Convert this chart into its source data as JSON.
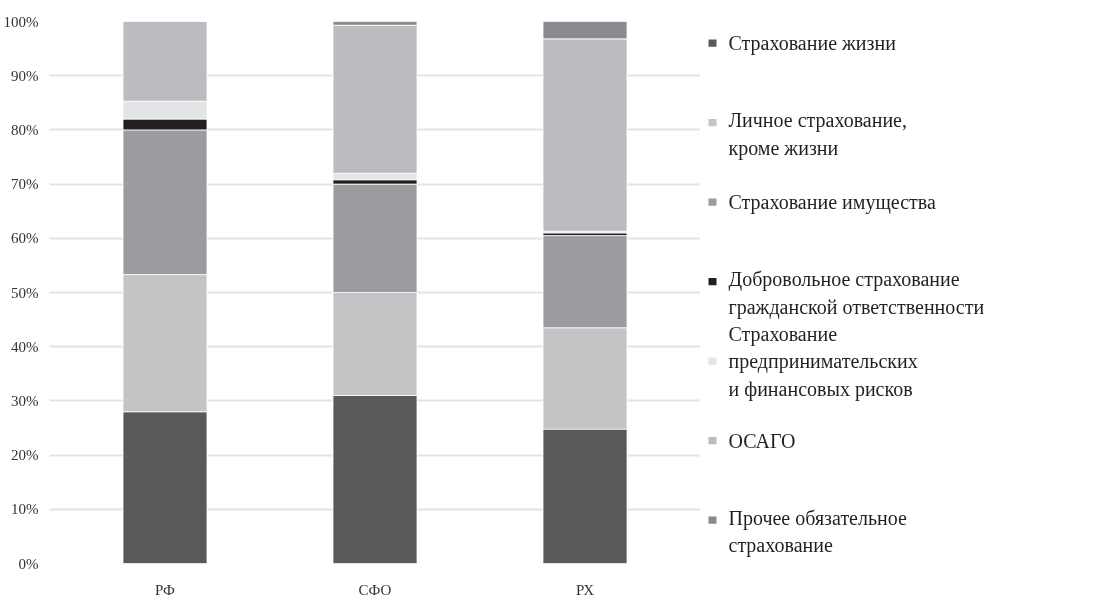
{
  "chart_data": {
    "type": "bar",
    "stacked": true,
    "categories": [
      "РФ",
      "СФО",
      "РХ"
    ],
    "series": [
      {
        "name": "Страхование жизни",
        "color": "#58595b",
        "values": [
          28,
          31,
          24.8
        ]
      },
      {
        "name": "Личное страхование,\nкроме жизни",
        "color": "#c3c4c6",
        "values": [
          25.3,
          19,
          18.7
        ]
      },
      {
        "name": "Страхование имущества",
        "color": "#9b9c9f",
        "values": [
          26.7,
          20,
          17
        ]
      },
      {
        "name": "Добровольное страхование\nгражданской ответственности",
        "color": "#231f20",
        "values": [
          2,
          0.8,
          0.5
        ]
      },
      {
        "name": "Страхование\nпредпринимательских\nи финансовых рисков",
        "color": "#e3e4e5",
        "values": [
          3.3,
          1.2,
          0.3
        ]
      },
      {
        "name": "ОСАГО",
        "color": "#bbbcbf",
        "values": [
          14.7,
          27.3,
          35.5
        ]
      },
      {
        "name": "Прочее обязательное\nстрахование",
        "color": "#8a8b8e",
        "values": [
          null,
          0.7,
          3.2
        ]
      }
    ],
    "ylim": [
      0,
      100
    ],
    "yticks": [
      {
        "value": 0,
        "label": "0%"
      },
      {
        "value": 10,
        "label": "10%"
      },
      {
        "value": 20,
        "label": "20%"
      },
      {
        "value": 30,
        "label": "30%"
      },
      {
        "value": 40,
        "label": "40%"
      },
      {
        "value": 50,
        "label": "50%"
      },
      {
        "value": 60,
        "label": "60%"
      },
      {
        "value": 70,
        "label": "70%"
      },
      {
        "value": 80,
        "label": "80%"
      },
      {
        "value": 90,
        "label": "90%"
      },
      {
        "value": 100,
        "label": "100%"
      }
    ],
    "grid": "y",
    "legend": "right"
  }
}
